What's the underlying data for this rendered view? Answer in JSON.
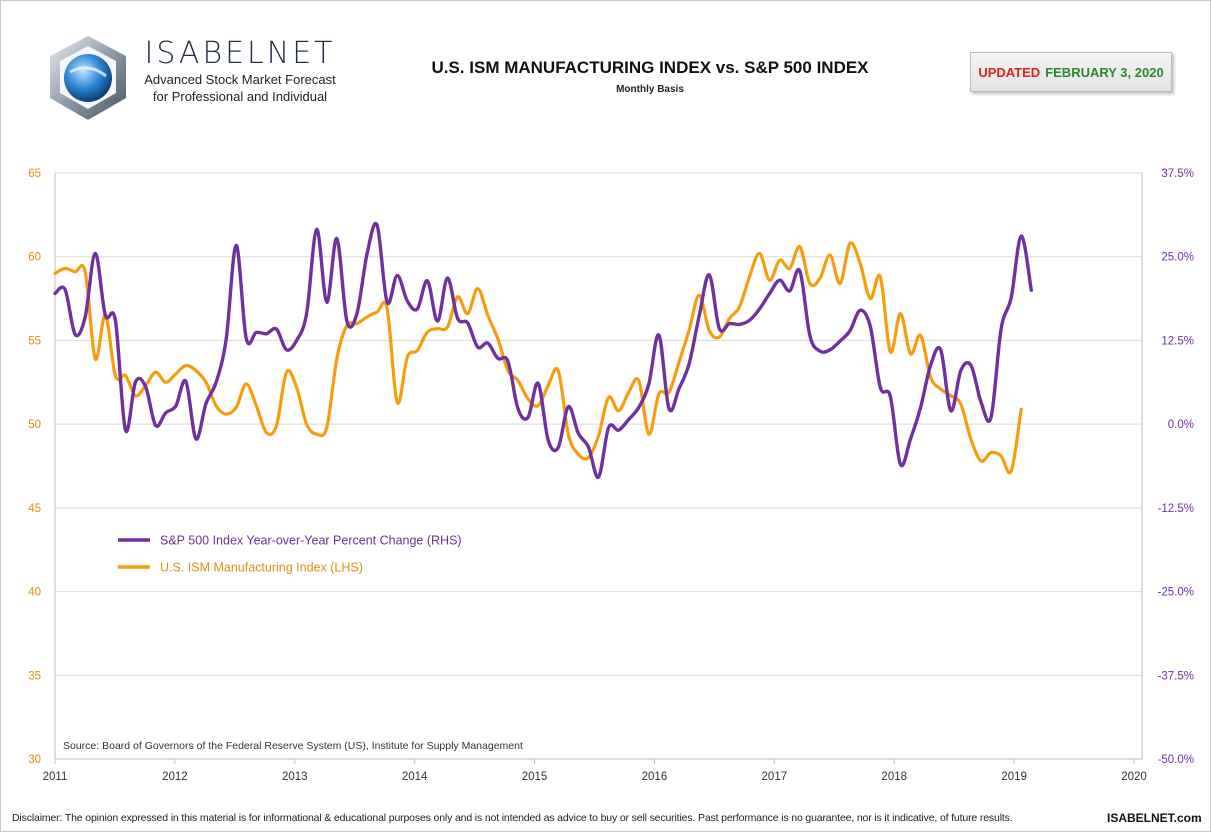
{
  "brand": {
    "name": "ISABELNET",
    "tagline1": "Advanced Stock Market Forecast",
    "tagline2": "for Professional and Individual"
  },
  "header": {
    "title": "U.S. ISM MANUFACTURING INDEX vs. S&P 500 INDEX",
    "subtitle": "Monthly Basis",
    "updated_label": "UPDATED",
    "updated_date": "FEBRUARY 3, 2020"
  },
  "footer": {
    "disclaimer": "Disclaimer: The opinion expressed in this material is for informational & educational purposes only and is not intended as advice to buy or sell securities. Past performance is no guarantee, nor is it indicative, of future results.",
    "site": "ISABELNET.com"
  },
  "colors": {
    "sp500": "#7030a0",
    "ism": "#f59d0e",
    "grid": "#d9d9d9",
    "left_axis": "#e38f0c",
    "right_axis": "#7030a0"
  },
  "chart_data": {
    "type": "line",
    "source": "Source: Board of Governors of the Federal Reserve System (US), Institute for Supply Management",
    "x_ticks": [
      "2011",
      "2012",
      "2013",
      "2014",
      "2015",
      "2016",
      "2017",
      "2018",
      "2019",
      "2020"
    ],
    "y_left": {
      "ylim": [
        30,
        65
      ],
      "ticks": [
        "30",
        "35",
        "40",
        "45",
        "50",
        "55",
        "60",
        "65"
      ]
    },
    "y_right": {
      "ylim": [
        -50,
        37.5
      ],
      "ticks": [
        "-50.0%",
        "-37.5%",
        "-25.0%",
        "-12.5%",
        "0.0%",
        "12.5%",
        "25.0%",
        "37.5%"
      ]
    },
    "legend_position": "left-middle",
    "series": [
      {
        "name": "S&P 500 Index Year-over-Year Percent Change (RHS)",
        "axis": "right",
        "x_start": "2011-01",
        "values": [
          19.5,
          20.1,
          13.4,
          16.0,
          25.5,
          16.3,
          15.5,
          -0.9,
          6.3,
          5.6,
          -0.2,
          1.7,
          2.7,
          6.4,
          -2.2,
          3.1,
          6.2,
          12.6,
          26.7,
          12.8,
          13.7,
          13.5,
          14.2,
          11.1,
          12.5,
          16.5,
          29.1,
          18.2,
          27.7,
          15.4,
          16.5,
          25.4,
          29.7,
          18.2,
          22.2,
          18.4,
          17.2,
          21.4,
          15.4,
          21.8,
          15.8,
          15.1,
          11.5,
          12.1,
          9.8,
          9.4,
          2.3,
          1.0,
          6.1,
          -2.4,
          -3.5,
          2.6,
          -1.4,
          -3.4,
          -7.9,
          -0.5,
          -0.9,
          0.7,
          2.5,
          6.0,
          13.3,
          2.3,
          5.3,
          9.0,
          16.1,
          22.3,
          14.3,
          15.0,
          14.9,
          15.5,
          17.2,
          19.5,
          21.5,
          19.9,
          22.9,
          13.2,
          10.9,
          11.1,
          12.4,
          14.0,
          17.0,
          14.6,
          5.5,
          4.1,
          -6.0,
          -2.2,
          2.5,
          8.8,
          11.1,
          2.0,
          8.0,
          8.8,
          3.3,
          1.0,
          14.2,
          18.9,
          28.1,
          20.0
        ]
      },
      {
        "name": "U.S. ISM Manufacturing Index (LHS)",
        "axis": "left",
        "x_start": "2011-01",
        "values": [
          59.0,
          59.3,
          59.1,
          59.1,
          53.9,
          56.5,
          52.9,
          52.9,
          51.7,
          52.3,
          53.1,
          52.5,
          53.0,
          53.5,
          53.2,
          52.5,
          51.1,
          50.6,
          51.0,
          52.4,
          51.1,
          49.5,
          49.9,
          53.1,
          52.2,
          50.0,
          49.4,
          49.8,
          53.9,
          55.9,
          56.0,
          56.4,
          56.7,
          56.9,
          51.3,
          54.0,
          54.4,
          55.5,
          55.7,
          55.8,
          57.6,
          56.6,
          58.1,
          56.5,
          55.1,
          53.2,
          52.6,
          51.5,
          51.1,
          52.3,
          53.2,
          49.4,
          48.2,
          48.0,
          49.3,
          51.6,
          50.8,
          51.9,
          52.6,
          49.4,
          51.8,
          51.9,
          53.7,
          55.6,
          57.7,
          55.6,
          55.2,
          56.3,
          57.0,
          58.8,
          60.2,
          58.6,
          59.8,
          59.3,
          60.6,
          58.4,
          58.7,
          60.1,
          58.4,
          60.8,
          59.6,
          57.5,
          58.8,
          54.3,
          56.6,
          54.2,
          55.3,
          52.8,
          52.1,
          51.7,
          51.2,
          49.1,
          47.8,
          48.3,
          48.1,
          47.2,
          50.9
        ]
      }
    ]
  }
}
